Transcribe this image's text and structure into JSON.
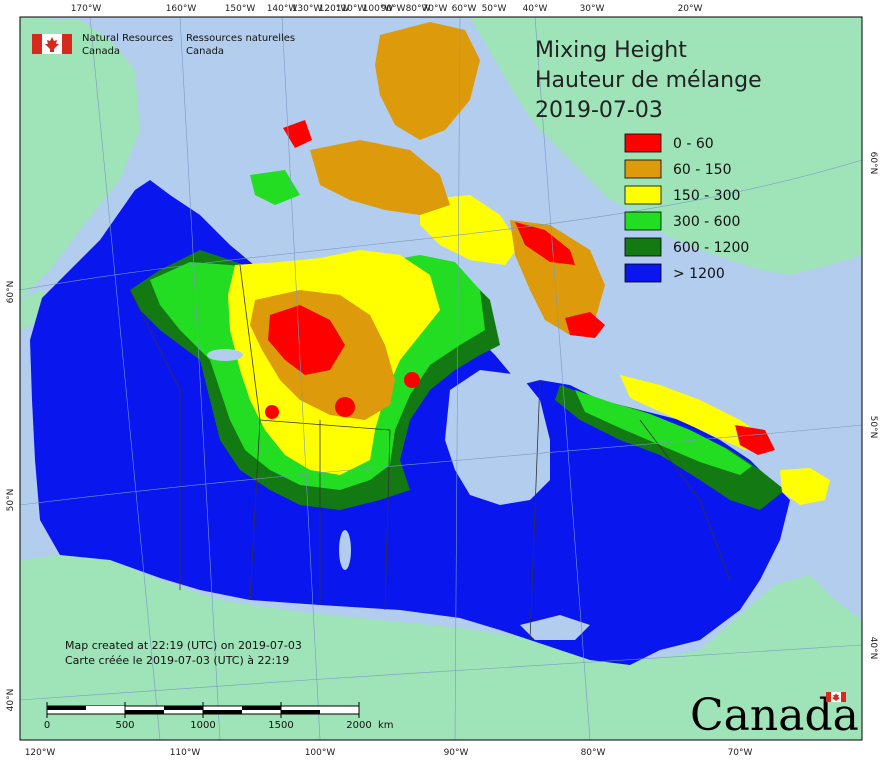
{
  "title": {
    "line1": "Mixing Height",
    "line2": "Hauteur de mélange",
    "date": "2019-07-03"
  },
  "agency": {
    "en_line1": "Natural Resources",
    "en_line2": "Canada",
    "fr_line1": "Ressources naturelles",
    "fr_line2": "Canada"
  },
  "legend": [
    {
      "label": "0 - 60",
      "color": "#ff0000"
    },
    {
      "label": "60 - 150",
      "color": "#dd9a0a"
    },
    {
      "label": "150 - 300",
      "color": "#ffff00"
    },
    {
      "label": "300 - 600",
      "color": "#22dd22"
    },
    {
      "label": "600 - 1200",
      "color": "#137a13"
    },
    {
      "label": "> 1200",
      "color": "#0a16ee"
    }
  ],
  "top_ticks": [
    "170°W",
    "160°W",
    "150°W",
    "140°W",
    "130°W",
    "120°W",
    "110°W",
    "100°W",
    "90°W",
    "80°W",
    "70°W",
    "60°W",
    "50°W",
    "40°W",
    "30°W",
    "20°W"
  ],
  "bottom_ticks": [
    "120°W",
    "110°W",
    "100°W",
    "90°W",
    "80°W",
    "70°W"
  ],
  "left_ticks": [
    "60°N",
    "50°N",
    "40°N"
  ],
  "right_ticks": [
    "60°N",
    "50°N",
    "40°N"
  ],
  "credit": {
    "line1": "Map created at 22:19 (UTC) on 2019-07-03",
    "line2": "Carte créée le 2019-07-03 (UTC) à 22:19"
  },
  "scale": {
    "labels": [
      "0",
      "500",
      "1000",
      "1500",
      "2000"
    ],
    "unit": "km"
  },
  "wordmark": "Canada",
  "colors": {
    "ocean": "#b3cdef",
    "land_outside": "#9fe3b8",
    "frame": "#000000"
  }
}
